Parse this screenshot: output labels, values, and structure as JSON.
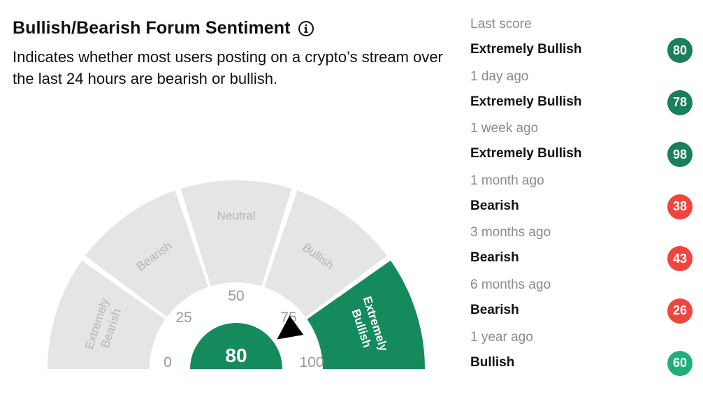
{
  "header": {
    "title": "Bullish/Bearish Forum Sentiment",
    "subtitle": "Indicates whether most users posting on a crypto’s stream over the last 24 hours are bearish or bullish."
  },
  "gauge": {
    "value": "80",
    "ticks": [
      "0",
      "25",
      "50",
      "75",
      "100"
    ],
    "segments": [
      {
        "line1": "Extremely",
        "line2": "Bearish"
      },
      {
        "label": "Bearish"
      },
      {
        "label": "Neutral"
      },
      {
        "label": "Bullish"
      },
      {
        "line1": "Extremely",
        "line2": "Bullish"
      }
    ],
    "active_segment": "Extremely Bullish"
  },
  "history": [
    {
      "label": "Last score",
      "sentiment": "Extremely Bullish",
      "score": "80",
      "color": "#1a7f5a"
    },
    {
      "label": "1 day ago",
      "sentiment": "Extremely Bullish",
      "score": "78",
      "color": "#1a7f5a"
    },
    {
      "label": "1 week ago",
      "sentiment": "Extremely Bullish",
      "score": "98",
      "color": "#1a7f5a"
    },
    {
      "label": "1 month ago",
      "sentiment": "Bearish",
      "score": "38",
      "color": "#f0453e"
    },
    {
      "label": "3 months ago",
      "sentiment": "Bearish",
      "score": "43",
      "color": "#f0453e"
    },
    {
      "label": "6 months ago",
      "sentiment": "Bearish",
      "score": "26",
      "color": "#f0453e"
    },
    {
      "label": "1 year ago",
      "sentiment": "Bullish",
      "score": "60",
      "color": "#1fb07a"
    }
  ],
  "colors": {
    "active": "#158a5d",
    "inactive": "#e5e5e5",
    "inactive_text": "#b5b5b5",
    "tick_text": "#9a9a9a"
  }
}
